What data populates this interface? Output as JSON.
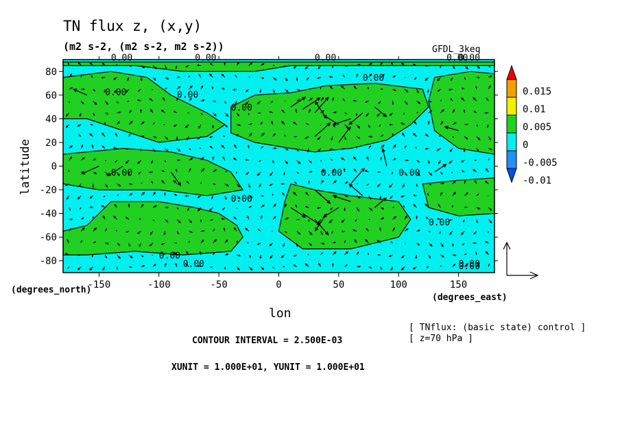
{
  "header": {
    "title": "TN flux z, (x,y)",
    "units": "(m2 s-2, (m2 s-2, m2 s-2))",
    "model": "GFDL_3keq"
  },
  "footer": {
    "contour_interval": "CONTOUR INTERVAL = 2.500E-03",
    "unit_line": "XUNIT = 1.000E+01, YUNIT = 1.000E+01",
    "note_line1": "[ TNflux: (basic state) control ]",
    "note_line2": "[ z=70 hPa ]"
  },
  "colors": {
    "positive_green": "#22d022",
    "negative_cyan": "#00f0f0",
    "neg_blue": "#1e90ff",
    "neg_dark_blue": "#0050f0",
    "yellow": "#f0f000",
    "orange": "#f0a000",
    "red": "#f00000",
    "line": "#000000"
  },
  "chart_data": {
    "type": "contour-vector-map",
    "xlabel": "lon",
    "ylabel": "latitude",
    "x_unit_label": "(degrees_east)",
    "y_unit_label": "(degrees_north)",
    "xlim": [
      -180,
      180
    ],
    "ylim": [
      -90,
      90
    ],
    "xticks": [
      -150,
      -100,
      -50,
      0,
      50,
      100,
      150
    ],
    "yticks": [
      -80,
      -60,
      -40,
      -20,
      0,
      20,
      40,
      60,
      80
    ],
    "contour_labels": [
      "0.00",
      "0.00",
      "0.00",
      "0.00",
      "0.00",
      "0.00",
      "0.00",
      "0.00",
      "0.00",
      "0.00",
      "0.00",
      "0.00",
      "0.00",
      "0.00",
      "0.00",
      "0.00",
      "0.00",
      "0.00"
    ],
    "colorbar": {
      "levels": [
        "0.015",
        "0.01",
        "0.005",
        "0",
        "-0.005",
        "-0.01"
      ],
      "colors": [
        "#f00000",
        "#f0a000",
        "#f0f000",
        "#22d022",
        "#00f0f0",
        "#1e90ff",
        "#0050f0"
      ]
    },
    "positive_regions_lonlat": [
      [
        [
          -180,
          -55
        ],
        [
          -160,
          -50
        ],
        [
          -150,
          -40
        ],
        [
          -140,
          -30
        ],
        [
          -100,
          -30
        ],
        [
          -70,
          -35
        ],
        [
          -50,
          -40
        ],
        [
          -35,
          -50
        ],
        [
          -30,
          -60
        ],
        [
          -40,
          -72
        ],
        [
          -80,
          -75
        ],
        [
          -120,
          -72
        ],
        [
          -160,
          -75
        ],
        [
          -180,
          -75
        ]
      ],
      [
        [
          -180,
          10
        ],
        [
          -130,
          15
        ],
        [
          -90,
          12
        ],
        [
          -60,
          5
        ],
        [
          -40,
          -5
        ],
        [
          -30,
          -20
        ],
        [
          -60,
          -25
        ],
        [
          -100,
          -20
        ],
        [
          -150,
          -20
        ],
        [
          -180,
          -15
        ]
      ],
      [
        [
          -180,
          75
        ],
        [
          -140,
          80
        ],
        [
          -110,
          75
        ],
        [
          -90,
          60
        ],
        [
          -60,
          45
        ],
        [
          -45,
          35
        ],
        [
          -60,
          25
        ],
        [
          -100,
          20
        ],
        [
          -130,
          30
        ],
        [
          -160,
          40
        ],
        [
          -180,
          40
        ]
      ],
      [
        [
          -40,
          50
        ],
        [
          -20,
          60
        ],
        [
          10,
          62
        ],
        [
          40,
          68
        ],
        [
          80,
          70
        ],
        [
          120,
          65
        ],
        [
          125,
          50
        ],
        [
          110,
          35
        ],
        [
          90,
          22
        ],
        [
          60,
          15
        ],
        [
          30,
          12
        ],
        [
          10,
          15
        ],
        [
          -20,
          20
        ],
        [
          -40,
          28
        ]
      ],
      [
        [
          130,
          75
        ],
        [
          160,
          80
        ],
        [
          180,
          78
        ],
        [
          180,
          10
        ],
        [
          150,
          15
        ],
        [
          130,
          30
        ],
        [
          125,
          55
        ]
      ],
      [
        [
          10,
          -15
        ],
        [
          30,
          -20
        ],
        [
          60,
          -25
        ],
        [
          100,
          -30
        ],
        [
          110,
          -45
        ],
        [
          100,
          -60
        ],
        [
          60,
          -70
        ],
        [
          20,
          -70
        ],
        [
          0,
          -55
        ],
        [
          5,
          -30
        ]
      ],
      [
        [
          120,
          -15
        ],
        [
          150,
          -12
        ],
        [
          180,
          -10
        ],
        [
          180,
          -40
        ],
        [
          150,
          -42
        ],
        [
          125,
          -35
        ]
      ],
      [
        [
          -80,
          80
        ],
        [
          -20,
          80
        ],
        [
          10,
          85
        ],
        [
          60,
          85
        ],
        [
          120,
          85
        ],
        [
          180,
          85
        ],
        [
          180,
          88
        ],
        [
          -180,
          88
        ],
        [
          -180,
          85
        ],
        [
          -120,
          85
        ]
      ]
    ],
    "vectors": [
      {
        "lon": 10,
        "lat": 50,
        "u": 1.5,
        "v": 1.0
      },
      {
        "lon": 20,
        "lat": 48,
        "u": 1.8,
        "v": 1.2
      },
      {
        "lon": 30,
        "lat": 45,
        "u": 1.4,
        "v": 1.6
      },
      {
        "lon": 40,
        "lat": 40,
        "u": -1.2,
        "v": 1.8
      },
      {
        "lon": 50,
        "lat": 35,
        "u": -1.6,
        "v": 1.0
      },
      {
        "lon": 60,
        "lat": 40,
        "u": -1.8,
        "v": -0.6
      },
      {
        "lon": 70,
        "lat": 45,
        "u": -1.4,
        "v": -1.2
      },
      {
        "lon": 80,
        "lat": 50,
        "u": 1.2,
        "v": -1.0
      },
      {
        "lon": 30,
        "lat": 25,
        "u": 1.6,
        "v": 1.4
      },
      {
        "lon": 50,
        "lat": 20,
        "u": 1.2,
        "v": 1.6
      },
      {
        "lon": 10,
        "lat": -35,
        "u": 1.5,
        "v": -1.0
      },
      {
        "lon": 20,
        "lat": -40,
        "u": 1.8,
        "v": -1.2
      },
      {
        "lon": 30,
        "lat": -45,
        "u": 1.4,
        "v": -1.6
      },
      {
        "lon": 40,
        "lat": -40,
        "u": -1.2,
        "v": -1.8
      },
      {
        "lon": 50,
        "lat": -35,
        "u": -1.6,
        "v": -1.0
      },
      {
        "lon": 60,
        "lat": -30,
        "u": -1.8,
        "v": 0.6
      },
      {
        "lon": 70,
        "lat": -25,
        "u": -1.4,
        "v": 1.2
      },
      {
        "lon": 80,
        "lat": -35,
        "u": 1.2,
        "v": 1.0
      },
      {
        "lon": 30,
        "lat": -20,
        "u": 1.6,
        "v": -1.4
      },
      {
        "lon": 60,
        "lat": -15,
        "u": 1.4,
        "v": 1.6
      },
      {
        "lon": -130,
        "lat": 0,
        "u": -1.6,
        "v": -1.0
      },
      {
        "lon": -150,
        "lat": 0,
        "u": -1.8,
        "v": -0.8
      },
      {
        "lon": -90,
        "lat": -5,
        "u": 1.0,
        "v": -1.4
      },
      {
        "lon": 90,
        "lat": 0,
        "u": -0.4,
        "v": 1.8
      },
      {
        "lon": 130,
        "lat": -5,
        "u": 1.2,
        "v": 0.8
      },
      {
        "lon": -160,
        "lat": 60,
        "u": -1.4,
        "v": 0.6
      },
      {
        "lon": 150,
        "lat": 30,
        "u": -1.4,
        "v": 0.4
      }
    ],
    "reference_arrow": {
      "x": 10,
      "y": 10
    }
  }
}
